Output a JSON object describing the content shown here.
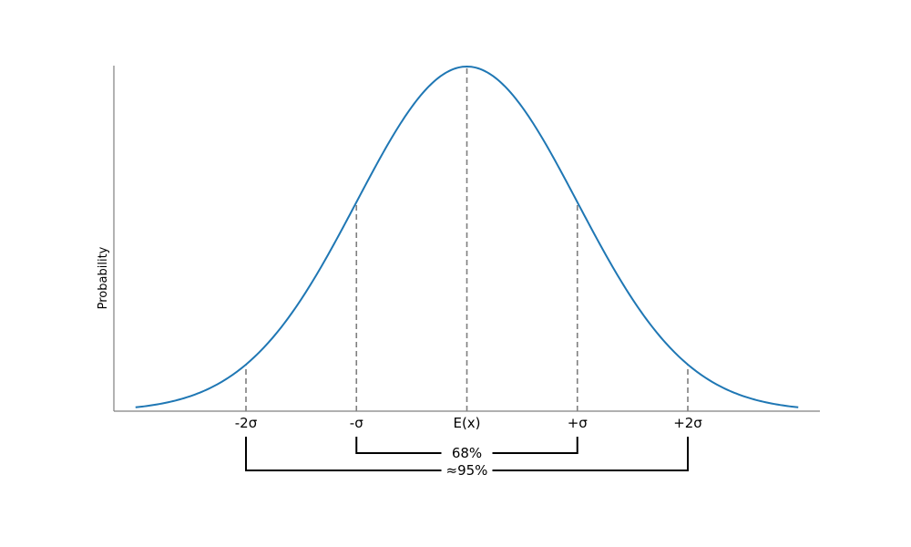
{
  "chart_data": {
    "type": "line",
    "title": "",
    "xlabel": "",
    "ylabel": "Probability",
    "distribution": "normal",
    "x_range_sigma": [
      -3,
      3
    ],
    "series": [
      {
        "x": [
          -3,
          -2.5,
          -2,
          -1.5,
          -1,
          -0.5,
          0,
          0.5,
          1,
          1.5,
          2,
          2.5,
          3
        ],
        "y": [
          0.0111,
          0.0439,
          0.1353,
          0.3247,
          0.6065,
          0.8825,
          1.0,
          0.8825,
          0.6065,
          0.3247,
          0.1353,
          0.0439,
          0.0111
        ],
        "color": "#1f77b4"
      }
    ],
    "xticks": [
      {
        "position": -2,
        "label": "-2σ"
      },
      {
        "position": -1,
        "label": "-σ"
      },
      {
        "position": 0,
        "label": "E(x)"
      },
      {
        "position": 1,
        "label": "+σ"
      },
      {
        "position": 2,
        "label": "+2σ"
      }
    ],
    "vertical_lines": [
      -2,
      -1,
      0,
      1,
      2
    ],
    "brackets": [
      {
        "from": -1,
        "to": 1,
        "label": "68%"
      },
      {
        "from": -2,
        "to": 2,
        "label": "≈95%"
      }
    ],
    "grid": false,
    "y_ticks_visible": false,
    "colors": {
      "curve": "#1f77b4",
      "guides": "#7f7f7f",
      "axis": "#808080",
      "bracket": "#000000"
    }
  }
}
